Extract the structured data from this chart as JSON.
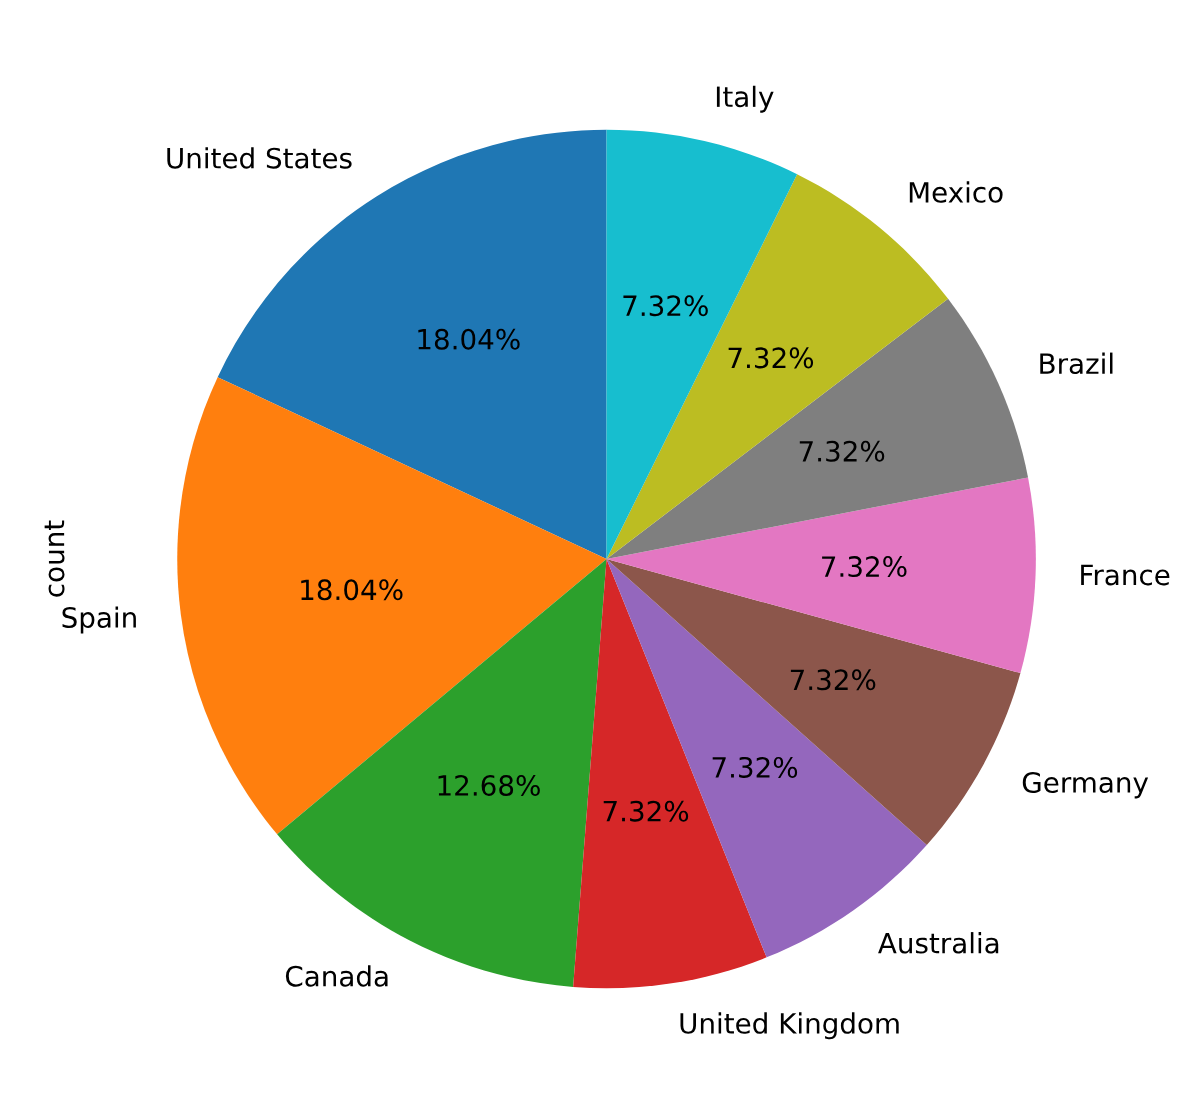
{
  "chart_data": {
    "type": "pie",
    "ylabel": "count",
    "categories": [
      "United States",
      "Spain",
      "Canada",
      "United Kingdom",
      "Australia",
      "Germany",
      "France",
      "Brazil",
      "Mexico",
      "Italy"
    ],
    "values": [
      18.04,
      18.04,
      12.68,
      7.32,
      7.32,
      7.32,
      7.32,
      7.32,
      7.32,
      7.32
    ],
    "value_labels": [
      "18.04%",
      "18.04%",
      "12.68%",
      "7.32%",
      "7.32%",
      "7.32%",
      "7.32%",
      "7.32%",
      "7.32%",
      "7.32%"
    ],
    "colors": [
      "#1f77b4",
      "#ff7f0e",
      "#2ca02c",
      "#d62728",
      "#9467bd",
      "#8c564b",
      "#e377c2",
      "#7f7f7f",
      "#bcbd22",
      "#17becf"
    ]
  }
}
